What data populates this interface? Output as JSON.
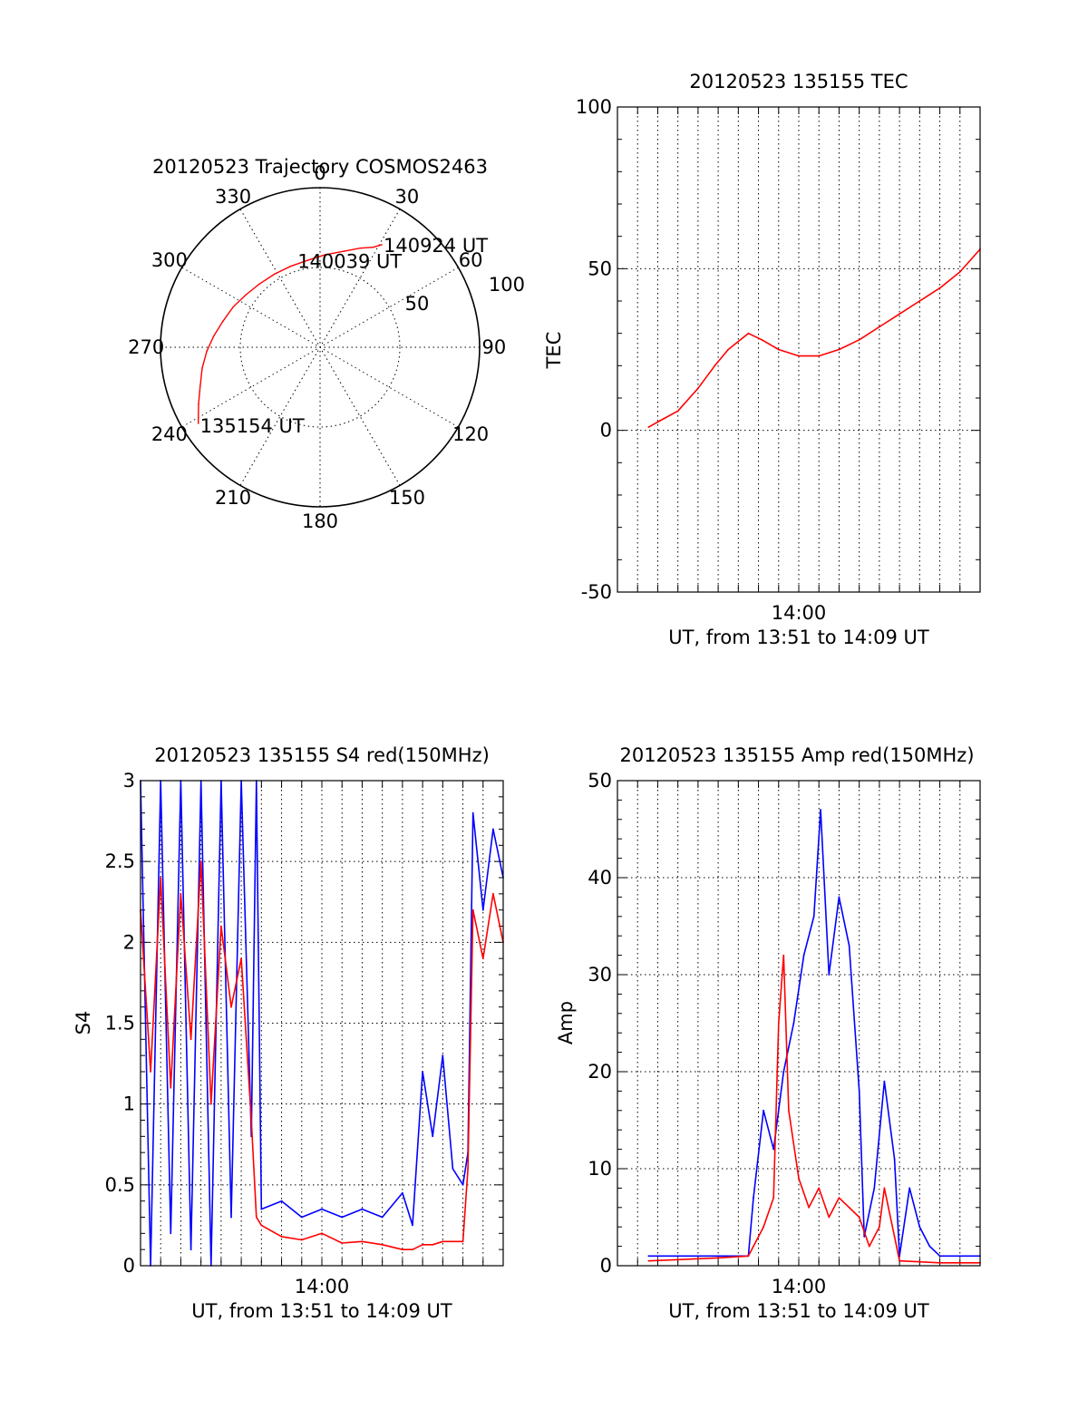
{
  "chart_data": [
    {
      "id": "polar",
      "type": "scatter",
      "projection": "polar",
      "title": "20120523 Trajectory COSMOS2463",
      "azimuth_labels": [
        "0",
        "30",
        "60",
        "90",
        "120",
        "150",
        "180",
        "210",
        "240",
        "270",
        "300",
        "330"
      ],
      "radial_labels": [
        "50",
        "100"
      ],
      "radial_max": 100,
      "grid": true,
      "track_color": "#ff0000",
      "track_azimuth": [
        238,
        245,
        252,
        260,
        268,
        276,
        285,
        295,
        305,
        316,
        328,
        340,
        352,
        3,
        14,
        22,
        28,
        31
      ],
      "track_radius": [
        90,
        84,
        79,
        75,
        71,
        67,
        63,
        60,
        57,
        55,
        54,
        54,
        55,
        58,
        62,
        67,
        71,
        75
      ],
      "point_labels": [
        {
          "text": "135154 UT",
          "azimuth": 238,
          "radius": 90
        },
        {
          "text": "140039 UT",
          "azimuth": 350,
          "radius": 55
        },
        {
          "text": "140924 UT",
          "azimuth": 31,
          "radius": 75
        }
      ]
    },
    {
      "id": "tec",
      "type": "line",
      "title": "20120523 135155 TEC",
      "xlabel": "UT, from 13:51 to 14:09 UT",
      "ylabel": "TEC",
      "xticks": [
        "14:00"
      ],
      "yticks": [
        "-50",
        "0",
        "50",
        "100"
      ],
      "ylim": [
        -50,
        100
      ],
      "grid": true,
      "series": [
        {
          "color": "#ff0000",
          "x": [
            "13:52:33",
            "13:53:07",
            "13:54:00",
            "13:55:00",
            "13:55:50",
            "13:56:30",
            "13:57:30",
            "13:58:10",
            "13:59:00",
            "14:00:00",
            "14:01:00",
            "14:02:00",
            "14:03:00",
            "14:04:00",
            "14:05:00",
            "14:06:00",
            "14:07:00",
            "14:08:00",
            "14:09:00"
          ],
          "y": [
            1,
            3,
            6,
            13,
            20,
            25,
            30,
            28,
            25,
            23,
            23,
            25,
            28,
            32,
            36,
            40,
            44,
            49,
            56
          ]
        }
      ]
    },
    {
      "id": "s4",
      "type": "line",
      "title": "20120523 135155 S4 red(150MHz)",
      "xlabel": "UT, from 13:51 to 14:09 UT",
      "ylabel": "S4",
      "xticks": [
        "14:00"
      ],
      "yticks": [
        "0",
        "0.5",
        "1",
        "1.5",
        "2",
        "2.5",
        "3"
      ],
      "ylim": [
        0,
        3
      ],
      "grid": true,
      "series": [
        {
          "color": "#0000ff",
          "x": [
            "13:51:00",
            "13:51:30",
            "13:52:00",
            "13:52:30",
            "13:53:00",
            "13:53:30",
            "13:54:00",
            "13:54:30",
            "13:55:00",
            "13:55:30",
            "13:56:00",
            "13:56:30",
            "13:56:45",
            "13:57:00",
            "13:58:00",
            "13:59:00",
            "14:00:00",
            "14:01:00",
            "14:02:00",
            "14:03:00",
            "14:04:00",
            "14:04:30",
            "14:05:00",
            "14:05:30",
            "14:06:00",
            "14:06:30",
            "14:07:00",
            "14:07:15",
            "14:07:30",
            "14:08:00",
            "14:08:30",
            "14:09:00"
          ],
          "y": [
            3,
            0,
            3,
            0.2,
            3,
            0.1,
            3,
            0,
            3,
            0.3,
            3,
            0.8,
            3,
            0.35,
            0.4,
            0.3,
            0.35,
            0.3,
            0.35,
            0.3,
            0.45,
            0.25,
            1.2,
            0.8,
            1.3,
            0.6,
            0.5,
            0.7,
            2.8,
            2.2,
            2.7,
            2.4
          ]
        },
        {
          "color": "#ff0000",
          "x": [
            "13:51:00",
            "13:51:30",
            "13:52:00",
            "13:52:30",
            "13:53:00",
            "13:53:30",
            "13:54:00",
            "13:54:30",
            "13:55:00",
            "13:55:30",
            "13:56:00",
            "13:56:30",
            "13:56:45",
            "13:57:00",
            "13:58:00",
            "13:59:00",
            "14:00:00",
            "14:01:00",
            "14:02:00",
            "14:03:00",
            "14:04:00",
            "14:04:30",
            "14:05:00",
            "14:05:30",
            "14:06:00",
            "14:06:30",
            "14:07:00",
            "14:07:15",
            "14:07:30",
            "14:08:00",
            "14:08:30",
            "14:09:00"
          ],
          "y": [
            2.2,
            1.2,
            2.4,
            1.1,
            2.3,
            1.4,
            2.5,
            1.0,
            2.1,
            1.6,
            1.9,
            0.9,
            0.3,
            0.25,
            0.18,
            0.16,
            0.2,
            0.14,
            0.15,
            0.13,
            0.1,
            0.1,
            0.13,
            0.13,
            0.15,
            0.15,
            0.15,
            0.6,
            2.2,
            1.9,
            2.3,
            2.0
          ]
        }
      ]
    },
    {
      "id": "amp",
      "type": "line",
      "title": "20120523 135155 Amp red(150MHz)",
      "xlabel": "UT, from 13:51 to 14:09 UT",
      "ylabel": "Amp",
      "xticks": [
        "14:00"
      ],
      "yticks": [
        "0",
        "10",
        "20",
        "30",
        "40",
        "50"
      ],
      "ylim": [
        0,
        50
      ],
      "grid": true,
      "series": [
        {
          "color": "#0000ff",
          "x": [
            "13:52:33",
            "13:54:00",
            "13:56:00",
            "13:57:30",
            "13:57:45",
            "13:58:15",
            "13:58:45",
            "13:59:15",
            "13:59:45",
            "14:00:15",
            "14:00:45",
            "14:01:05",
            "14:01:30",
            "14:02:00",
            "14:02:30",
            "14:03:00",
            "14:03:15",
            "14:03:45",
            "14:04:15",
            "14:04:45",
            "14:05:00",
            "14:05:30",
            "14:06:00",
            "14:06:30",
            "14:07:00",
            "14:08:00",
            "14:09:00"
          ],
          "y": [
            1,
            1,
            1,
            1,
            7,
            16,
            12,
            20,
            25,
            32,
            36,
            47,
            30,
            38,
            33,
            18,
            3,
            8,
            19,
            11,
            1,
            8,
            4,
            2,
            1,
            1,
            1
          ]
        },
        {
          "color": "#ff0000",
          "x": [
            "13:52:33",
            "13:56:00",
            "13:57:30",
            "13:57:45",
            "13:58:15",
            "13:58:45",
            "13:59:00",
            "13:59:15",
            "13:59:30",
            "14:00:00",
            "14:00:30",
            "14:01:00",
            "14:01:30",
            "14:02:00",
            "14:02:30",
            "14:03:00",
            "14:03:30",
            "14:04:00",
            "14:04:15",
            "14:04:45",
            "14:05:00",
            "14:06:00",
            "14:07:00",
            "14:09:00"
          ],
          "y": [
            0.5,
            0.8,
            1,
            2,
            4,
            7,
            25,
            32,
            16,
            9,
            6,
            8,
            5,
            7,
            6,
            5,
            2,
            4,
            8,
            3,
            0.5,
            0.4,
            0.3,
            0.3
          ]
        }
      ]
    }
  ]
}
